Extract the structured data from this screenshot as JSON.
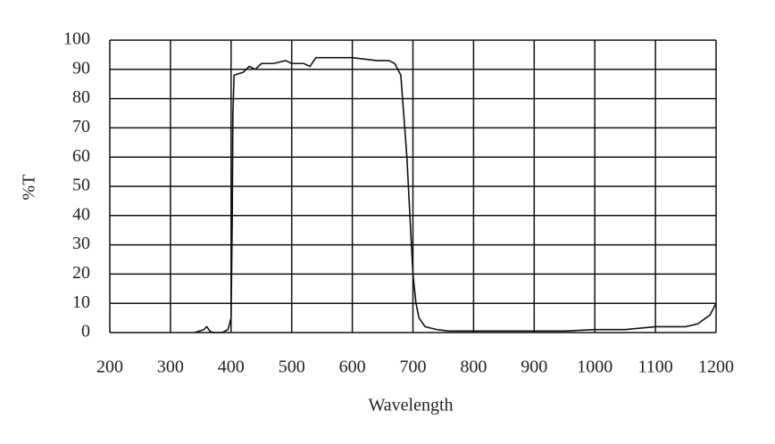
{
  "chart_data": {
    "type": "line",
    "x_label": "Wavelength",
    "y_label": "%T",
    "xlim": [
      200,
      1200
    ],
    "xticks": [
      200,
      300,
      400,
      500,
      600,
      700,
      800,
      900,
      1000,
      1100,
      1200
    ],
    "ylim": [
      0,
      100
    ],
    "yticks": [
      0,
      10,
      20,
      30,
      40,
      50,
      60,
      70,
      80,
      90,
      100
    ],
    "grid": true,
    "series": [
      {
        "color": "#111111",
        "x": [
          340,
          355,
          360,
          365,
          370,
          385,
          395,
          400,
          402,
          403,
          405,
          420,
          430,
          440,
          450,
          470,
          490,
          500,
          520,
          530,
          540,
          560,
          600,
          640,
          660,
          670,
          680,
          690,
          700,
          705,
          710,
          720,
          740,
          760,
          800,
          850,
          900,
          950,
          1000,
          1050,
          1100,
          1150,
          1170,
          1190,
          1200
        ],
        "values": [
          0,
          1,
          2,
          0.5,
          0,
          0,
          1,
          5,
          40,
          75,
          88,
          89,
          91,
          90,
          92,
          92,
          93,
          92,
          92,
          91,
          94,
          94,
          94,
          93,
          93,
          92,
          88,
          60,
          20,
          10,
          5,
          2,
          1,
          0.5,
          0.5,
          0.5,
          0.5,
          0.5,
          1,
          1,
          2,
          2,
          3,
          6,
          10
        ]
      }
    ]
  }
}
